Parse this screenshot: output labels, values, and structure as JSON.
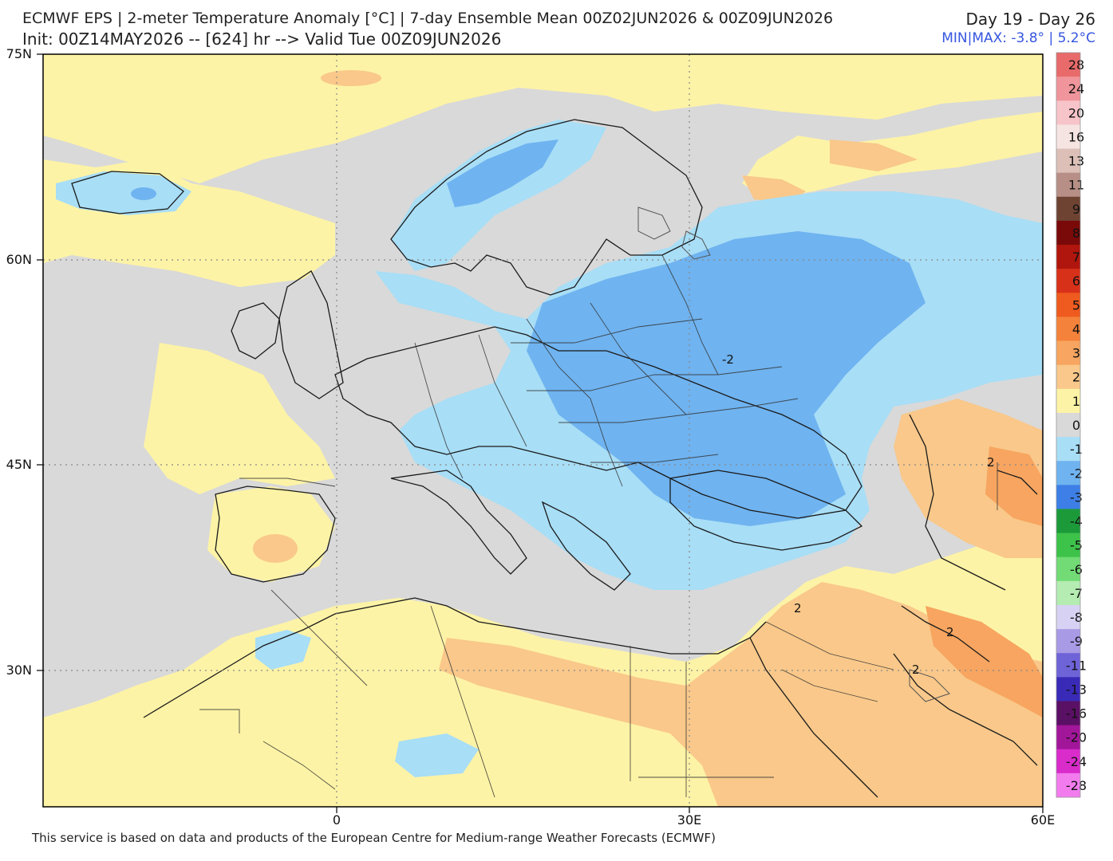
{
  "header": {
    "title_line1": "ECMWF EPS | 2-meter Temperature Anomaly [°C] | 7-day Ensemble Mean 00Z02JUN2026 & 00Z09JUN2026",
    "title_line2": "Init: 00Z14MAY2026 -- [624] hr --> Valid Tue 00Z09JUN2026",
    "day_range": "Day 19 - Day 26",
    "minmax": "MIN|MAX: -3.8° | 5.2°C"
  },
  "axes": {
    "lat_labels": [
      "75N",
      "60N",
      "45N",
      "30N"
    ],
    "lon_labels": [
      "0",
      "30E",
      "60E"
    ]
  },
  "contour_labels": [
    "-2",
    "2",
    "2",
    "2",
    "2"
  ],
  "colorbar": {
    "levels": [
      {
        "label": "28",
        "color": "#e86a6a"
      },
      {
        "label": "24",
        "color": "#f0959b"
      },
      {
        "label": "20",
        "color": "#f7c4c9"
      },
      {
        "label": "16",
        "color": "#f5e4e2"
      },
      {
        "label": "13",
        "color": "#dcc0b8"
      },
      {
        "label": "11",
        "color": "#b78f86"
      },
      {
        "label": "9",
        "color": "#6e4332"
      },
      {
        "label": "8",
        "color": "#7a0a0a"
      },
      {
        "label": "7",
        "color": "#b0160d"
      },
      {
        "label": "6",
        "color": "#d8311a"
      },
      {
        "label": "5",
        "color": "#ef5a1e"
      },
      {
        "label": "4",
        "color": "#f5823a"
      },
      {
        "label": "3",
        "color": "#f7a560"
      },
      {
        "label": "2",
        "color": "#f9c88a"
      },
      {
        "label": "1",
        "color": "#fdf3a6"
      },
      {
        "label": "0",
        "color": "#d9d9d9"
      },
      {
        "label": "-1",
        "color": "#a8def6"
      },
      {
        "label": "-2",
        "color": "#6fb3f0"
      },
      {
        "label": "-3",
        "color": "#3d7fe6"
      },
      {
        "label": "-4",
        "color": "#1c9a3a"
      },
      {
        "label": "-5",
        "color": "#3dc24a"
      },
      {
        "label": "-6",
        "color": "#72db75"
      },
      {
        "label": "-7",
        "color": "#b4ecb2"
      },
      {
        "label": "-8",
        "color": "#d7d2f3"
      },
      {
        "label": "-9",
        "color": "#a99ae6"
      },
      {
        "label": "-11",
        "color": "#6f63d8"
      },
      {
        "label": "-13",
        "color": "#3a2ab8"
      },
      {
        "label": "-16",
        "color": "#5a1064"
      },
      {
        "label": "-20",
        "color": "#a2169a"
      },
      {
        "label": "-24",
        "color": "#d92ccb"
      },
      {
        "label": "-28",
        "color": "#f27cee"
      }
    ]
  },
  "colors": {
    "neutral": "#d9d9d9",
    "warm1": "#fdf3a6",
    "warm2": "#f9c88a",
    "warm3": "#f7a560",
    "cool1": "#a8def6",
    "cool2": "#6fb3f0",
    "cool3": "#3d7fe6"
  },
  "footer": "This service is based on data and products of the European Centre for Medium-range Weather Forecasts (ECMWF)"
}
